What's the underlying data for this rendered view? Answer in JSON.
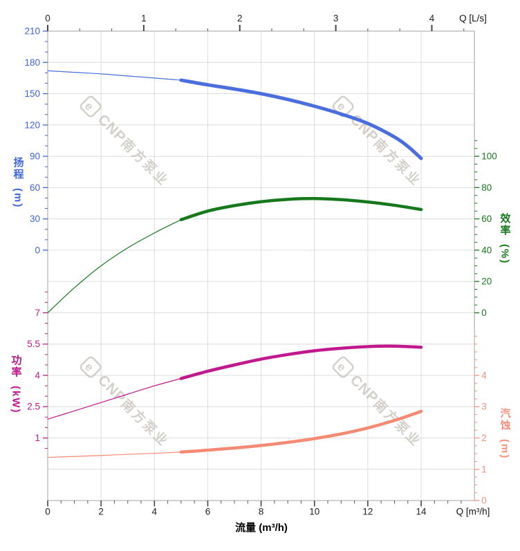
{
  "watermark": {
    "logo": "e",
    "brand": "CNP",
    "cn": "南方泵业",
    "color": "rgba(183,177,169,0.6)"
  },
  "chart_data": {
    "type": "line",
    "title": "",
    "x_bottom": {
      "title": "流量 (m³/h)",
      "end_label": "Q [m³/h]",
      "ticks": [
        0,
        2,
        4,
        6,
        8,
        10,
        12,
        14
      ],
      "max": 16,
      "minor_step": 0.5
    },
    "x_top": {
      "end_label": "Q [L/s]",
      "ticks": [
        0,
        1,
        2,
        3,
        4
      ],
      "m3h_per_lps": 3.6,
      "minor_step": 0.3333
    },
    "y_axes": [
      {
        "id": "head",
        "title": "扬程",
        "unit": "(m)",
        "side": "left",
        "color": "#3f63d9",
        "ticks": [
          210,
          180,
          150,
          120,
          90,
          60,
          30,
          0
        ],
        "row_of_max": 0,
        "units_per_row": 30,
        "minors_per_major": 2,
        "minor_extend": [
          0,
          0
        ]
      },
      {
        "id": "eff",
        "title": "效率",
        "unit": "(%)",
        "side": "right",
        "color": "#15791c",
        "ticks": [
          100,
          80,
          60,
          40,
          20,
          0
        ],
        "row_of_max": 4,
        "units_per_row": 20,
        "minors_per_major": 3,
        "minor_extend": [
          2,
          0
        ]
      },
      {
        "id": "power",
        "title": "功率",
        "unit": "(kW)",
        "side": "left",
        "color": "#c0188c",
        "ticks": [
          7,
          5.5,
          4,
          2.5,
          1
        ],
        "row_of_max": 9,
        "units_per_row": 1.5,
        "minors_per_major": 2,
        "minor_extend": [
          2,
          1
        ]
      },
      {
        "id": "npsh",
        "title": "汽蚀",
        "unit": "(m)",
        "side": "right",
        "color": "#f5907d",
        "ticks": [
          4,
          3,
          2,
          1,
          0
        ],
        "row_of_max": 11,
        "units_per_row": 1,
        "minors_per_major": 3,
        "minor_extend": [
          5,
          0
        ]
      }
    ],
    "series": [
      {
        "name": "扬程",
        "id": "head-curve",
        "axis": "head",
        "color": "#4a6edd",
        "thick_from": 5,
        "points": [
          [
            0,
            172
          ],
          [
            1,
            170.5
          ],
          [
            2,
            169
          ],
          [
            3,
            167
          ],
          [
            4,
            165
          ],
          [
            5,
            163
          ],
          [
            6,
            158.5
          ],
          [
            7,
            154.5
          ],
          [
            8,
            150
          ],
          [
            9,
            144.5
          ],
          [
            10,
            138
          ],
          [
            11,
            130.5
          ],
          [
            12,
            121.5
          ],
          [
            13,
            108.5
          ],
          [
            13.5,
            99.5
          ],
          [
            14,
            88
          ]
        ]
      },
      {
        "name": "效率",
        "id": "efficiency-curve",
        "axis": "eff",
        "color": "#15791c",
        "thick_from": 5,
        "points": [
          [
            0,
            0
          ],
          [
            1,
            16
          ],
          [
            2,
            30
          ],
          [
            3,
            41.5
          ],
          [
            4,
            51
          ],
          [
            5,
            59.5
          ],
          [
            6,
            65
          ],
          [
            7,
            68.5
          ],
          [
            8,
            71
          ],
          [
            9,
            72.5
          ],
          [
            10,
            73
          ],
          [
            11,
            72.3
          ],
          [
            12,
            70.8
          ],
          [
            13,
            68.7
          ],
          [
            14,
            66
          ]
        ]
      },
      {
        "name": "功率",
        "id": "power-curve",
        "axis": "power",
        "color": "#c2188e",
        "thick_from": 5,
        "points": [
          [
            0,
            1.9
          ],
          [
            1,
            2.3
          ],
          [
            2,
            2.7
          ],
          [
            3,
            3.1
          ],
          [
            4,
            3.5
          ],
          [
            5,
            3.85
          ],
          [
            6,
            4.2
          ],
          [
            7,
            4.5
          ],
          [
            8,
            4.78
          ],
          [
            9,
            5.0
          ],
          [
            10,
            5.18
          ],
          [
            11,
            5.3
          ],
          [
            12,
            5.38
          ],
          [
            13,
            5.4
          ],
          [
            14,
            5.35
          ]
        ]
      },
      {
        "name": "汽蚀",
        "id": "npsh-curve",
        "axis": "npsh",
        "color": "#f58a74",
        "thick_from": 5,
        "points": [
          [
            0,
            1.38
          ],
          [
            1,
            1.41
          ],
          [
            2,
            1.44
          ],
          [
            3,
            1.48
          ],
          [
            4,
            1.51
          ],
          [
            5,
            1.55
          ],
          [
            6,
            1.61
          ],
          [
            7,
            1.68
          ],
          [
            8,
            1.76
          ],
          [
            9,
            1.86
          ],
          [
            10,
            1.98
          ],
          [
            11,
            2.13
          ],
          [
            12,
            2.32
          ],
          [
            13,
            2.56
          ],
          [
            14,
            2.85
          ]
        ]
      }
    ]
  }
}
